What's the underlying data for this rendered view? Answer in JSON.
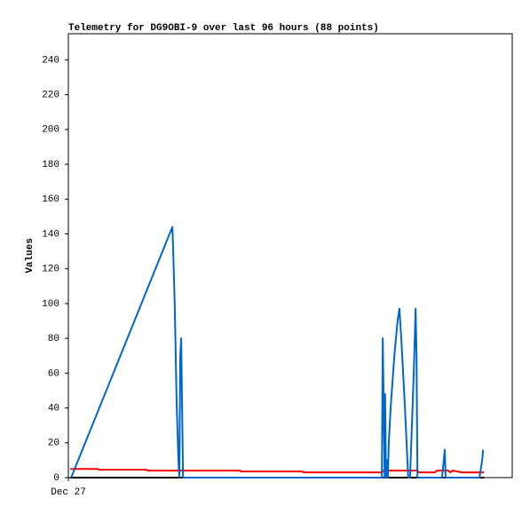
{
  "chart_data": {
    "type": "line",
    "title": "Telemetry for DG9OBI-9 over last 96 hours (88 points)",
    "y_label": "Values",
    "xlim": [
      0,
      96
    ],
    "xticks": [
      {
        "value": 0,
        "label": "Dec 27"
      }
    ],
    "ylim": [
      0,
      255
    ],
    "yticks": [
      0,
      20,
      40,
      60,
      80,
      100,
      120,
      140,
      160,
      180,
      200,
      220,
      240
    ],
    "series": [
      {
        "color": "#000000",
        "x": [
          0.4,
          89.9
        ],
        "values": [
          0,
          0
        ]
      },
      {
        "color": "#ff0000",
        "x": [
          0.4,
          6.3,
          6.7,
          16.9,
          17.3,
          37.1,
          37.4,
          50.5,
          50.9,
          67.8,
          68.2,
          75.5,
          75.8,
          79.3,
          79.7,
          82.2,
          82.6,
          83.1,
          85.1,
          89.9
        ],
        "values": [
          5,
          5,
          4.5,
          4.5,
          4,
          4,
          3.5,
          3.5,
          3,
          3,
          4,
          4,
          3,
          3,
          4,
          4,
          3,
          4,
          3,
          3
        ]
      },
      {
        "color": "#0066cc",
        "x": [
          0.6,
          22.5,
          22.7,
          23.0,
          23.4,
          23.8,
          24.0,
          24.2,
          24.4,
          24.6,
          24.8,
          67.8,
          68.0,
          68.2,
          68.4,
          68.5,
          68.7,
          68.9,
          69.1,
          69.3,
          69.7,
          70.5,
          71.2,
          71.6,
          72.0,
          72.8,
          73.5,
          73.9,
          74.7,
          75.1,
          75.3,
          75.5,
          80.8,
          81.2,
          81.4,
          81.6,
          88.9,
          89.5,
          89.7
        ],
        "values": [
          0,
          144,
          128,
          100,
          45,
          10,
          0,
          70,
          80,
          40,
          0,
          0,
          80,
          40,
          0,
          48,
          0,
          10,
          0,
          20,
          40,
          70,
          90,
          97,
          80,
          40,
          0,
          0,
          60,
          97,
          70,
          0,
          0,
          10,
          16,
          0,
          0,
          10,
          16
        ]
      }
    ]
  }
}
